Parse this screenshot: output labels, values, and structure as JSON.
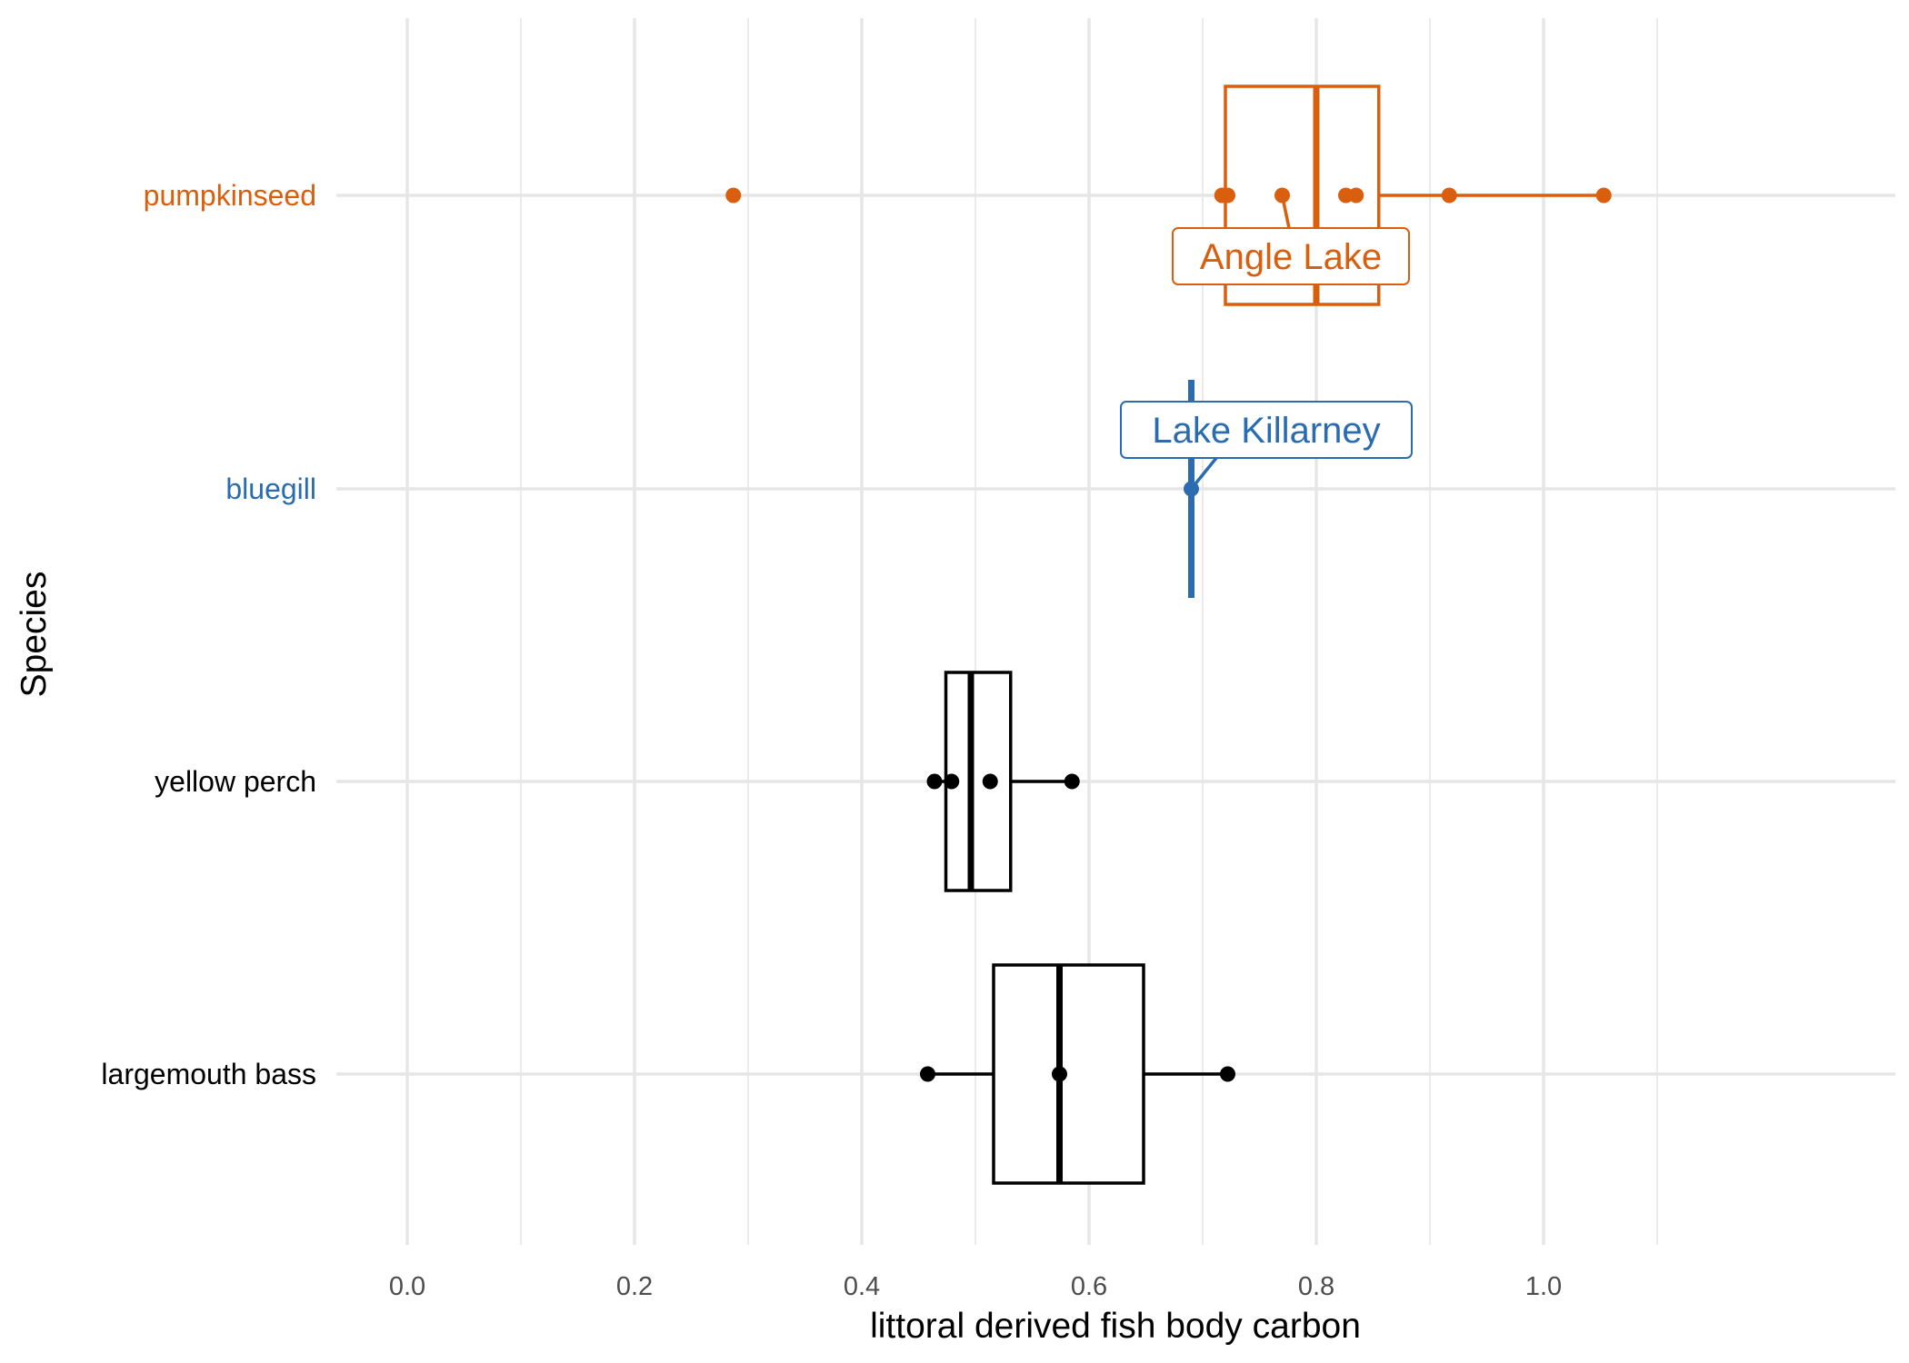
{
  "chart_data": {
    "type": "boxplot",
    "orientation": "horizontal",
    "xlabel": "littoral derived fish body carbon",
    "ylabel": "Species",
    "xlim": [
      -0.05,
      1.31
    ],
    "xticks": [
      0.0,
      0.2,
      0.4,
      0.6,
      0.8,
      1.0
    ],
    "xtick_labels": [
      "0.0",
      "0.2",
      "0.4",
      "0.6",
      "0.8",
      "1.0"
    ],
    "minor_xticks": [
      0.1,
      0.3,
      0.5,
      0.7,
      0.9,
      1.1
    ],
    "grid": true,
    "categories": [
      "pumpkinseed",
      "bluegill",
      "yellow perch",
      "largemouth bass"
    ],
    "series": [
      {
        "category": "pumpkinseed",
        "color": "#D95F0E",
        "box": {
          "whisker_low": 0.72,
          "q1": 0.72,
          "median": 0.8,
          "q3": 0.855,
          "whisker_high": 1.055
        },
        "points": [
          0.287,
          0.717,
          0.722,
          0.77,
          0.826,
          0.835,
          0.917,
          1.053
        ]
      },
      {
        "category": "bluegill",
        "color": "#2B6CB0",
        "box": {
          "whisker_low": 0.69,
          "q1": 0.69,
          "median": 0.69,
          "q3": 0.69,
          "whisker_high": 0.69
        },
        "points": [
          0.69
        ]
      },
      {
        "category": "yellow perch",
        "color": "#000000",
        "box": {
          "whisker_low": 0.464,
          "q1": 0.474,
          "median": 0.496,
          "q3": 0.531,
          "whisker_high": 0.585
        },
        "points": [
          0.464,
          0.479,
          0.513,
          0.585
        ]
      },
      {
        "category": "largemouth bass",
        "color": "#000000",
        "box": {
          "whisker_low": 0.458,
          "q1": 0.516,
          "median": 0.574,
          "q3": 0.648,
          "whisker_high": 0.722
        },
        "points": [
          0.458,
          0.574,
          0.722
        ]
      }
    ],
    "annotations": [
      {
        "text": "Angle Lake",
        "category": "pumpkinseed",
        "point_x": 0.77,
        "color": "#D95F0E"
      },
      {
        "text": "Lake Killarney",
        "category": "bluegill",
        "point_x": 0.69,
        "color": "#2B6CB0"
      }
    ]
  }
}
